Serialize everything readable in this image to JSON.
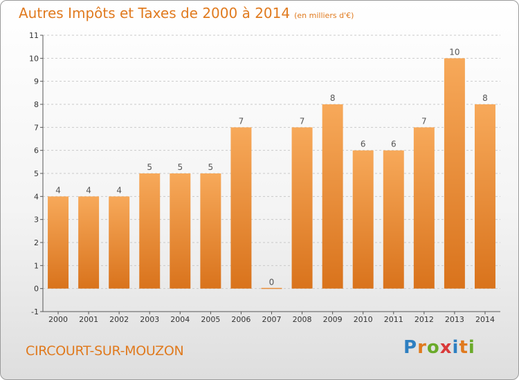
{
  "header": {
    "title": "Autres Impôts et Taxes de 2000 à 2014",
    "unit": "(en milliers d'€)"
  },
  "footer": {
    "town": "CIRCOURT-SUR-MOUZON",
    "logo": "Proxiti",
    "logo_letters": [
      "P",
      "r",
      "o",
      "x",
      "i",
      "t",
      "i"
    ],
    "logo_colors": [
      "#2e7fc1",
      "#e07a1e",
      "#6aaa2a",
      "#d93a3a",
      "#2e7fc1",
      "#e07a1e",
      "#6aaa2a"
    ]
  },
  "chart_data": {
    "type": "bar",
    "title": "Autres Impôts et Taxes de 2000 à 2014",
    "subtitle": "(en milliers d'€)",
    "categories": [
      "2000",
      "2001",
      "2002",
      "2003",
      "2004",
      "2005",
      "2006",
      "2007",
      "2008",
      "2009",
      "2010",
      "2011",
      "2012",
      "2013",
      "2014"
    ],
    "values": [
      4,
      4,
      4,
      5,
      5,
      5,
      7,
      0,
      7,
      8,
      6,
      6,
      7,
      10,
      8
    ],
    "data_labels": [
      "4",
      "4",
      "4",
      "5",
      "5",
      "5",
      "7",
      "0",
      "7",
      "8",
      "6",
      "6",
      "7",
      "10",
      "8"
    ],
    "yticks": [
      "-1",
      "0",
      "1",
      "2",
      "3",
      "4",
      "5",
      "6",
      "7",
      "8",
      "9",
      "10",
      "11"
    ],
    "ylim": [
      -1,
      11
    ],
    "grid": "horizontal dashed",
    "bar_color_top": "#f7a95a",
    "bar_color_bottom": "#d9731c"
  }
}
